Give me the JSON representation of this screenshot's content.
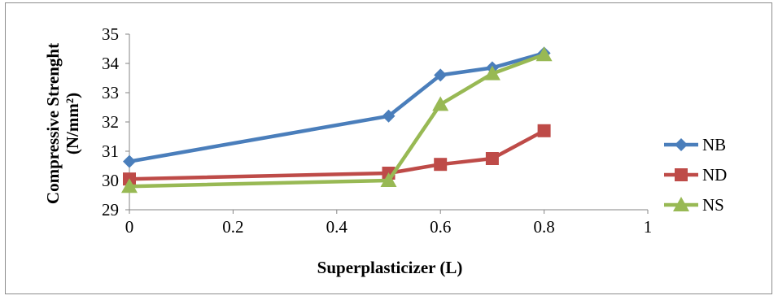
{
  "chart_data": {
    "type": "line",
    "title": "",
    "xlabel": "Superplasticizer (L)",
    "ylabel_line1": "Compressive Strenght",
    "ylabel_line2": "(N/mm²)",
    "xlim": [
      0,
      1
    ],
    "ylim": [
      29,
      35
    ],
    "x_ticks": [
      "0",
      "0.2",
      "0.4",
      "0.6",
      "0.8",
      "1"
    ],
    "y_ticks": [
      "29",
      "30",
      "31",
      "32",
      "33",
      "34",
      "35"
    ],
    "grid": false,
    "legend_position": "right",
    "x": [
      0,
      0.5,
      0.6,
      0.7,
      0.8
    ],
    "series": [
      {
        "name": "NB",
        "color": "#4a7ebb",
        "marker": "diamond",
        "values": [
          30.65,
          32.2,
          33.6,
          33.85,
          34.35
        ]
      },
      {
        "name": "ND",
        "color": "#be4b48",
        "marker": "square",
        "values": [
          30.05,
          30.25,
          30.55,
          30.75,
          31.7
        ]
      },
      {
        "name": "NS",
        "color": "#98b954",
        "marker": "triangle",
        "values": [
          29.8,
          30.0,
          32.6,
          33.65,
          34.3
        ]
      }
    ]
  }
}
